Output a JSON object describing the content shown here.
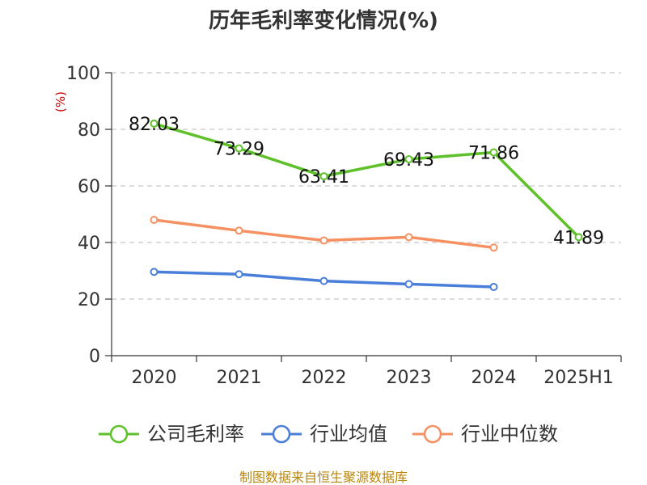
{
  "chart_data": {
    "type": "line",
    "title": "历年毛利率变化情况(%)",
    "ylabel": "(%)",
    "xlabel": "",
    "ylim": [
      0,
      100
    ],
    "yticks": [
      0,
      20,
      40,
      60,
      80,
      100
    ],
    "categories": [
      "2020",
      "2021",
      "2022",
      "2023",
      "2024",
      "2025H1"
    ],
    "grid": true,
    "legend_position": "bottom",
    "series": [
      {
        "name": "公司毛利率",
        "color": "#5ec12a",
        "values": [
          82.03,
          73.29,
          63.41,
          69.43,
          71.86,
          41.89
        ],
        "labels": [
          "82.03",
          "73.29",
          "63.41",
          "69.43",
          "71.86",
          "41.89"
        ]
      },
      {
        "name": "行业均值",
        "color": "#4a7fd9",
        "values": [
          29.6,
          28.8,
          26.4,
          25.3,
          24.3,
          null
        ]
      },
      {
        "name": "行业中位数",
        "color": "#f79060",
        "values": [
          48.0,
          44.2,
          40.7,
          41.9,
          38.2,
          null
        ]
      }
    ]
  },
  "source": "制图数据来自恒生聚源数据库"
}
